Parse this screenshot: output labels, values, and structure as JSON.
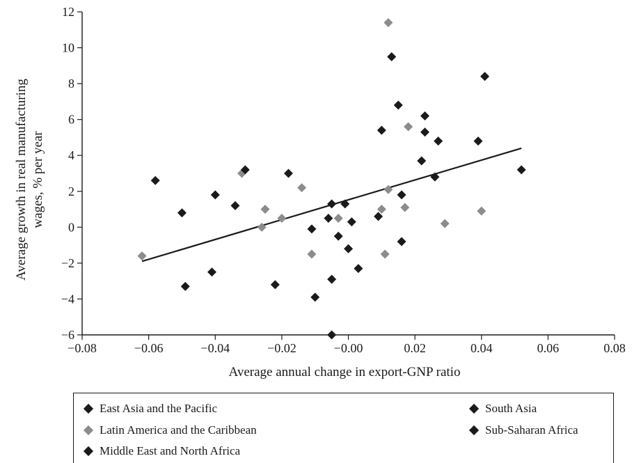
{
  "chart_data": {
    "type": "scatter",
    "title": "",
    "xlabel": "Average annual change in export-GNP ratio",
    "ylabel": "Average growth in real manufacturing wages, % per year",
    "xlim": [
      -0.08,
      0.08
    ],
    "ylim": [
      -6,
      12
    ],
    "xticks": [
      "−0.08",
      "−0.06",
      "−0.04",
      "−0.02",
      "−0.00",
      "0.02",
      "0.04",
      "0.06",
      "0.08"
    ],
    "yticks": [
      "−6",
      "−4",
      "−2",
      "0",
      "2",
      "4",
      "6",
      "8",
      "10",
      "12"
    ],
    "grid": false,
    "legend_position": "bottom",
    "colors": {
      "dark": "#1a1a1a",
      "light": "#8c8c8c"
    },
    "trendline": {
      "x": [
        -0.062,
        0.052
      ],
      "y": [
        -1.9,
        4.4
      ]
    },
    "series": [
      {
        "name": "East Asia and the Pacific",
        "color": "#1a1a1a",
        "points": [
          [
            0.013,
            9.5
          ],
          [
            0.015,
            6.8
          ],
          [
            0.023,
            6.2
          ],
          [
            0.01,
            5.4
          ],
          [
            0.023,
            5.3
          ],
          [
            0.027,
            4.8
          ],
          [
            0.039,
            4.8
          ],
          [
            0.041,
            8.4
          ],
          [
            0.052,
            3.2
          ],
          [
            0.022,
            3.7
          ],
          [
            0.026,
            2.8
          ],
          [
            0.016,
            1.8
          ],
          [
            0.016,
            -0.8
          ],
          [
            0.009,
            0.6
          ]
        ]
      },
      {
        "name": "Latin America and the Caribbean",
        "color": "#8c8c8c",
        "points": [
          [
            0.012,
            11.4
          ],
          [
            0.018,
            5.6
          ],
          [
            -0.062,
            -1.6
          ],
          [
            -0.032,
            3.0
          ],
          [
            -0.025,
            1.0
          ],
          [
            -0.026,
            0.0
          ],
          [
            -0.02,
            0.5
          ],
          [
            -0.014,
            2.2
          ],
          [
            -0.011,
            -1.5
          ],
          [
            -0.003,
            0.5
          ],
          [
            0.01,
            1.0
          ],
          [
            0.012,
            2.1
          ],
          [
            0.017,
            1.1
          ],
          [
            0.011,
            -1.5
          ],
          [
            0.029,
            0.2
          ],
          [
            0.04,
            0.9
          ]
        ]
      },
      {
        "name": "South Asia",
        "color": "#1a1a1a",
        "points": [
          [
            -0.011,
            -0.1
          ],
          [
            -0.005,
            1.3
          ],
          [
            0.0,
            -1.2
          ],
          [
            0.001,
            0.3
          ]
        ]
      },
      {
        "name": "Sub-Saharan Africa",
        "color": "#1a1a1a",
        "points": [
          [
            -0.058,
            2.6
          ],
          [
            -0.05,
            0.8
          ],
          [
            -0.049,
            -3.3
          ],
          [
            -0.04,
            1.8
          ],
          [
            -0.041,
            -2.5
          ],
          [
            -0.034,
            1.2
          ],
          [
            -0.031,
            3.2
          ],
          [
            -0.022,
            -3.2
          ],
          [
            -0.018,
            3.0
          ],
          [
            -0.01,
            -3.9
          ],
          [
            -0.005,
            -2.9
          ],
          [
            -0.005,
            -6.0
          ],
          [
            -0.003,
            -0.5
          ],
          [
            0.003,
            -2.3
          ]
        ]
      },
      {
        "name": "Middle East and North Africa",
        "color": "#1a1a1a",
        "points": [
          [
            -0.006,
            0.5
          ],
          [
            -0.001,
            1.3
          ]
        ]
      }
    ]
  },
  "legend": [
    {
      "label": "East Asia and the Pacific",
      "color": "#1a1a1a"
    },
    {
      "label": "Latin America and the Caribbean",
      "color": "#8c8c8c"
    },
    {
      "label": "Middle East and North Africa",
      "color": "#1a1a1a"
    },
    {
      "label": "South Asia",
      "color": "#1a1a1a"
    },
    {
      "label": "Sub-Saharan Africa",
      "color": "#1a1a1a"
    }
  ]
}
